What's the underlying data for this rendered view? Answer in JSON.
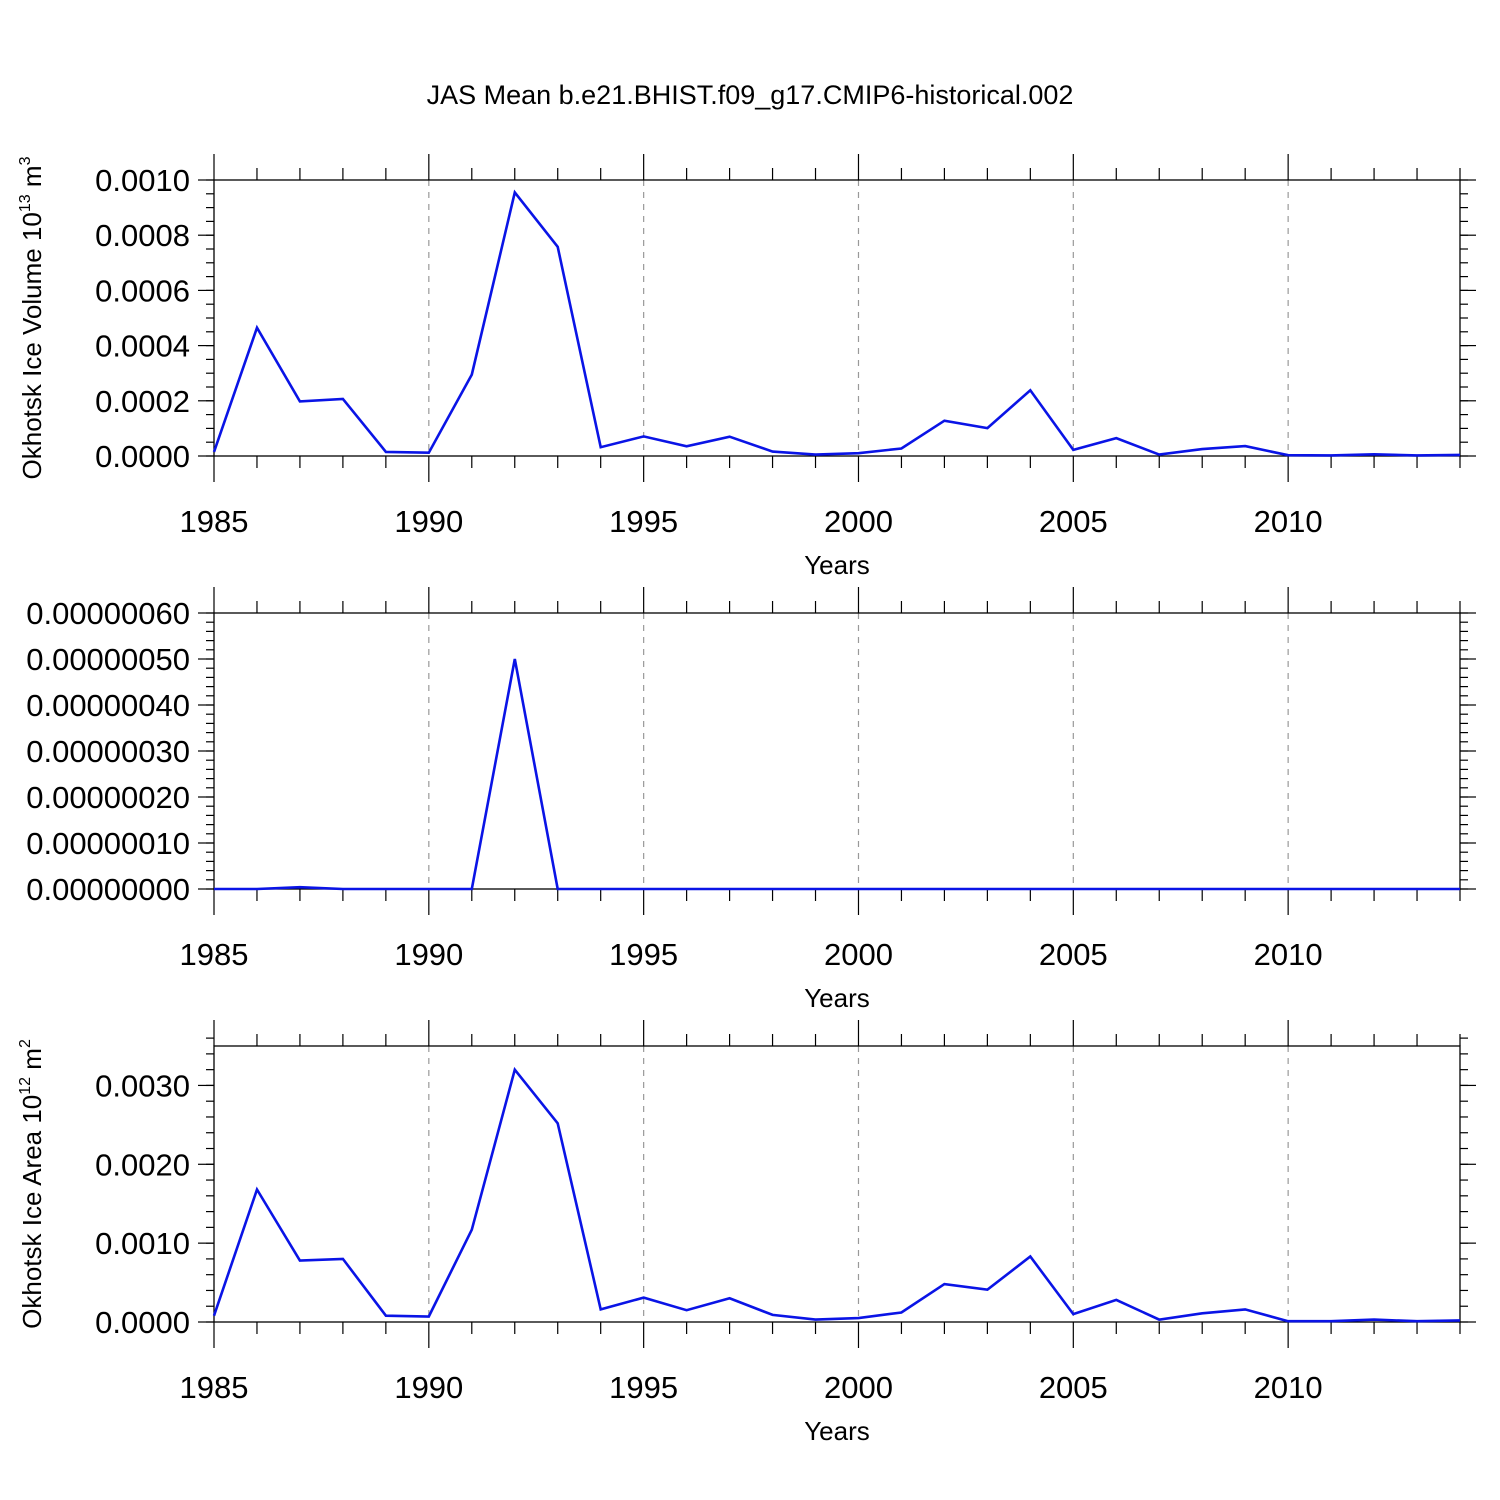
{
  "figure_title": "JAS Mean b.e21.BHIST.f09_g17.CMIP6-historical.002",
  "colors": {
    "line": "#0a14e6",
    "axis": "#000000",
    "grid": "#999999"
  },
  "chart_data": [
    {
      "type": "line",
      "name": "ice-volume",
      "ylabel_parts": {
        "prefix": "Okhotsk Ice Volume 10",
        "exp1": "13",
        "unit": " m",
        "exp2": "3"
      },
      "xlabel": "Years",
      "xlim": [
        1985,
        2014
      ],
      "ylim": [
        0,
        0.001
      ],
      "x_ticks": [
        1985,
        1990,
        1995,
        2000,
        2005,
        2010
      ],
      "x_tick_labels": [
        "1985",
        "1990",
        "1995",
        "2000",
        "2005",
        "2010"
      ],
      "y_ticks": [
        0,
        0.0002,
        0.0004,
        0.0006,
        0.0008,
        0.001
      ],
      "y_tick_labels": [
        "0.0000",
        "0.0002",
        "0.0004",
        "0.0006",
        "0.0008",
        "0.0010"
      ],
      "y_minor_step": 5e-05,
      "grid": "x-major-dashed",
      "x": [
        1985,
        1986,
        1987,
        1988,
        1989,
        1990,
        1991,
        1992,
        1993,
        1994,
        1995,
        1996,
        1997,
        1998,
        1999,
        2000,
        2001,
        2002,
        2003,
        2004,
        2005,
        2006,
        2007,
        2008,
        2009,
        2010,
        2011,
        2012,
        2013,
        2014
      ],
      "values": [
        1.5e-05,
        0.000465,
        0.000198,
        0.000207,
        1.5e-05,
        1.2e-05,
        0.000295,
        0.000955,
        0.000758,
        3.2e-05,
        7.1e-05,
        3.5e-05,
        7e-05,
        1.6e-05,
        5e-06,
        1e-05,
        2.7e-05,
        0.000128,
        0.000101,
        0.000238,
        2.2e-05,
        6.5e-05,
        5e-06,
        2.5e-05,
        3.6e-05,
        3e-06,
        2e-06,
        6e-06,
        2e-06,
        4e-06
      ]
    },
    {
      "type": "line",
      "name": "ice-volume-small",
      "ylabel_parts": null,
      "xlabel": "Years",
      "xlim": [
        1985,
        2014
      ],
      "ylim": [
        0,
        6e-07
      ],
      "x_ticks": [
        1985,
        1990,
        1995,
        2000,
        2005,
        2010
      ],
      "x_tick_labels": [
        "1985",
        "1990",
        "1995",
        "2000",
        "2005",
        "2010"
      ],
      "y_ticks": [
        0,
        1e-07,
        2e-07,
        3e-07,
        4e-07,
        5e-07,
        6e-07
      ],
      "y_tick_labels": [
        "0.00000000",
        "0.00000010",
        "0.00000020",
        "0.00000030",
        "0.00000040",
        "0.00000050",
        "0.00000060"
      ],
      "y_minor_step": 2e-08,
      "grid": "x-major-dashed",
      "x": [
        1985,
        1986,
        1987,
        1988,
        1989,
        1990,
        1991,
        1992,
        1993,
        1994,
        1995,
        1996,
        1997,
        1998,
        1999,
        2000,
        2001,
        2002,
        2003,
        2004,
        2005,
        2006,
        2007,
        2008,
        2009,
        2010,
        2011,
        2012,
        2013,
        2014
      ],
      "values": [
        0,
        0,
        4e-09,
        0,
        0,
        0,
        0,
        5e-07,
        0,
        0,
        0,
        0,
        0,
        0,
        0,
        0,
        0,
        0,
        0,
        0,
        0,
        0,
        0,
        0,
        0,
        0,
        0,
        0,
        0,
        0
      ]
    },
    {
      "type": "line",
      "name": "ice-area",
      "ylabel_parts": {
        "prefix": "Okhotsk Ice Area 10",
        "exp1": "12",
        "unit": " m",
        "exp2": "2"
      },
      "xlabel": "Years",
      "xlim": [
        1985,
        2014
      ],
      "ylim": [
        0,
        0.0035
      ],
      "x_ticks": [
        1985,
        1990,
        1995,
        2000,
        2005,
        2010
      ],
      "x_tick_labels": [
        "1985",
        "1990",
        "1995",
        "2000",
        "2005",
        "2010"
      ],
      "y_ticks": [
        0,
        0.001,
        0.002,
        0.003
      ],
      "y_tick_labels": [
        "0.0000",
        "0.0010",
        "0.0020",
        "0.0030"
      ],
      "y_minor_step": 0.0002,
      "grid": "x-major-dashed",
      "x": [
        1985,
        1986,
        1987,
        1988,
        1989,
        1990,
        1991,
        1992,
        1993,
        1994,
        1995,
        1996,
        1997,
        1998,
        1999,
        2000,
        2001,
        2002,
        2003,
        2004,
        2005,
        2006,
        2007,
        2008,
        2009,
        2010,
        2011,
        2012,
        2013,
        2014
      ],
      "values": [
        8e-05,
        0.00168,
        0.00078,
        0.0008,
        8e-05,
        7e-05,
        0.00117,
        0.0032,
        0.00252,
        0.00016,
        0.00031,
        0.00015,
        0.0003,
        9e-05,
        3e-05,
        5e-05,
        0.00012,
        0.00048,
        0.00041,
        0.00083,
        0.0001,
        0.00028,
        3e-05,
        0.00011,
        0.00016,
        1e-05,
        1e-05,
        3e-05,
        1e-05,
        2e-05
      ]
    }
  ]
}
